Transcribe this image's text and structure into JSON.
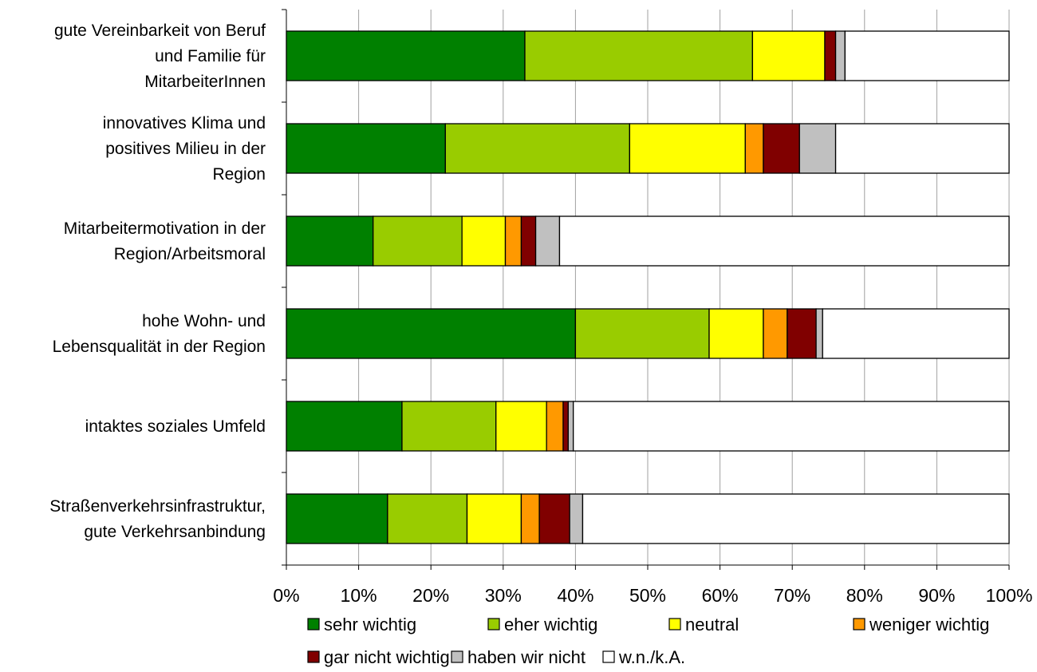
{
  "chart_data": {
    "type": "bar",
    "orientation": "horizontal",
    "stacked": true,
    "percent": true,
    "categories": [
      [
        "gute Vereinbarkeit von Beruf",
        "und Familie für",
        "MitarbeiterInnen"
      ],
      [
        "innovatives Klima und",
        "positives Milieu in der",
        "Region"
      ],
      [
        "Mitarbeitermotivation in der",
        "Region/Arbeitsmoral"
      ],
      [
        "hohe Wohn- und",
        "Lebensqualität in der Region"
      ],
      [
        "intaktes soziales Umfeld"
      ],
      [
        "Straßenverkehrsinfrastruktur,",
        "gute Verkehrsanbindung"
      ]
    ],
    "series": [
      {
        "name": "sehr wichtig",
        "color": "#008000",
        "values": [
          33,
          22,
          12,
          40,
          16,
          14
        ]
      },
      {
        "name": "eher wichtig",
        "color": "#99CC00",
        "values": [
          31.5,
          25.5,
          12.3,
          18.5,
          13,
          11
        ]
      },
      {
        "name": "neutral",
        "color": "#FFFF00",
        "values": [
          10,
          16,
          6,
          7.5,
          7,
          7.5
        ]
      },
      {
        "name": "weniger wichtig",
        "color": "#FF9900",
        "values": [
          0,
          2.5,
          2.2,
          3.3,
          2.3,
          2.5
        ]
      },
      {
        "name": "gar nicht wichtig",
        "color": "#800000",
        "values": [
          1.5,
          5,
          2,
          4,
          0.7,
          4.2
        ]
      },
      {
        "name": "haben wir nicht",
        "color": "#C0C0C0",
        "values": [
          1.3,
          5,
          3.3,
          0.9,
          0.7,
          1.8
        ]
      },
      {
        "name": "w.n./k.A.",
        "color": "#FFFFFF",
        "values": [
          22.7,
          24,
          62.2,
          25.8,
          60.3,
          59
        ]
      }
    ],
    "xlim": [
      0,
      100
    ],
    "xticks": [
      "0%",
      "10%",
      "20%",
      "30%",
      "40%",
      "50%",
      "60%",
      "70%",
      "80%",
      "90%",
      "100%"
    ],
    "grid": true,
    "legend_position": "bottom"
  }
}
